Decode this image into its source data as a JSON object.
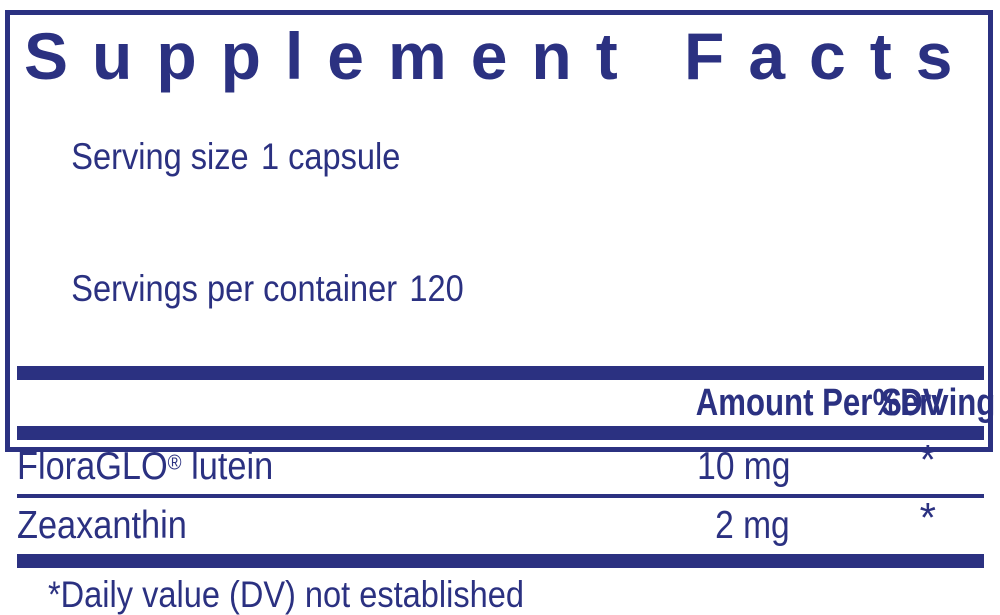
{
  "label": {
    "title": "Supplement Facts",
    "serving": {
      "size_label": "Serving size",
      "size_value": "1 capsule",
      "container_label": "Servings per container",
      "container_value": "120"
    },
    "header": {
      "amount": "Amount Per Serving",
      "dv": "%DV"
    },
    "rows": [
      {
        "name": "FloraGLO",
        "reg": "®",
        "name_suffix": " lutein",
        "amount": "10 mg",
        "dv": "*"
      },
      {
        "name": "Zeaxanthin",
        "reg": "",
        "name_suffix": "",
        "amount": "2 mg",
        "dv": "*"
      }
    ],
    "footnote": "*Daily value (DV) not established",
    "colors": {
      "navy": "#2b3181",
      "background": "#ffffff"
    }
  }
}
